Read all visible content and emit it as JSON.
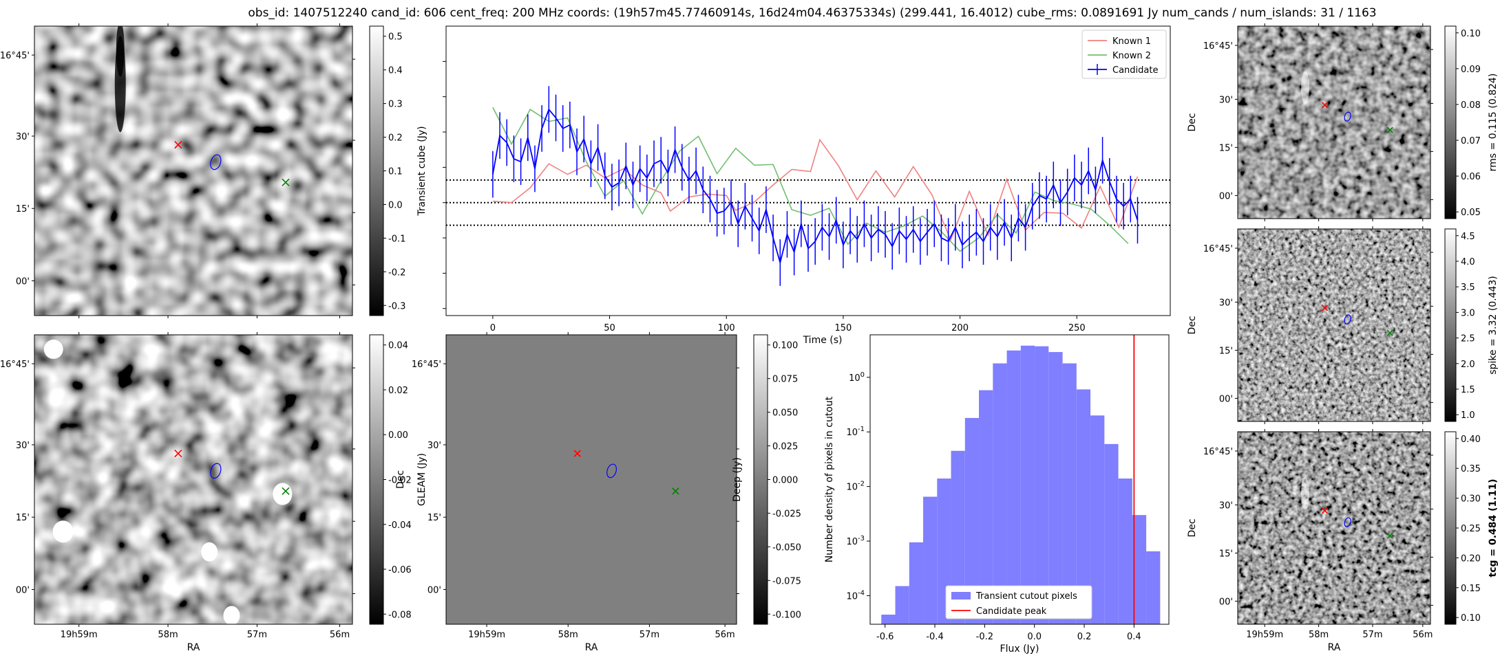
{
  "title": "obs_id: 1407512240 cand_id: 606 cent_freq: 200 MHz coords: (19h57m45.77460914s, 16d24m04.46375334s) (299.441, 16.4012) cube_rms: 0.0891691 Jy num_cands / num_islands: 31 / 1163",
  "colors": {
    "red": "#ff0000",
    "green": "#008000",
    "blue": "#0000ff",
    "known1": "#f08080",
    "known2": "#6fbf6f",
    "hist": "#7f7fff"
  },
  "sky_axes": {
    "dec_ticks": [
      "16°45'",
      "30'",
      "15'",
      "00'"
    ],
    "ra_ticks": [
      "19h59m",
      "58m",
      "57m",
      "56m"
    ],
    "ra_label": "RA",
    "dec_label": "Dec"
  },
  "panels": {
    "transient": {
      "colorbar_label": "Transient cube (Jy)",
      "colorbar_ticks": [
        "0.5",
        "0.4",
        "0.3",
        "0.2",
        "0.1",
        "0.0",
        "-0.1",
        "-0.2",
        "-0.3"
      ]
    },
    "gleam": {
      "colorbar_label": "GLEAM (Jy)",
      "colorbar_ticks": [
        "0.04",
        "0.02",
        "0.00",
        "-0.02",
        "-0.04",
        "-0.06",
        "-0.08"
      ]
    },
    "deep": {
      "colorbar_label": "Deep (Jy)",
      "colorbar_ticks": [
        "0.100",
        "0.075",
        "0.050",
        "0.025",
        "0.000",
        "-0.025",
        "-0.050",
        "-0.075",
        "-0.100"
      ]
    },
    "rms": {
      "colorbar_label": "rms = 0.115 (0.824)",
      "colorbar_ticks": [
        "0.10",
        "0.09",
        "0.08",
        "0.07",
        "0.06",
        "0.05"
      ]
    },
    "spike": {
      "colorbar_label": "spike = 3.32 (0.443)",
      "colorbar_ticks": [
        "4.5",
        "4.0",
        "3.5",
        "3.0",
        "2.5",
        "2.0",
        "1.5",
        "1.0"
      ]
    },
    "tcg": {
      "colorbar_label": "tcg = 0.484 (1.11)",
      "colorbar_ticks": [
        "0.40",
        "0.35",
        "0.30",
        "0.25",
        "0.20",
        "0.15",
        "0.10"
      ]
    }
  },
  "chart_data": [
    {
      "type": "line",
      "xlabel": "Time (s)",
      "ylabel": "",
      "xlim": [
        -20,
        290
      ],
      "ylim": [
        -1.6,
        2.5
      ],
      "x_ticks": [
        0,
        50,
        100,
        150,
        200,
        250
      ],
      "hlines": [
        0.32,
        0.0,
        -0.32
      ],
      "legend": [
        "Known 1",
        "Known 2",
        "Candidate"
      ],
      "legend_position": "top-right",
      "known1_x": [
        0,
        8,
        16,
        24,
        32,
        40,
        48,
        56,
        64,
        72,
        76,
        84,
        92,
        100,
        104,
        112,
        120,
        128,
        136,
        140,
        148,
        156,
        164,
        172,
        180,
        188,
        196,
        204,
        212,
        220,
        228,
        236,
        244,
        252,
        260,
        268,
        276
      ],
      "known1_y": [
        0.02,
        0.0,
        0.21,
        0.55,
        0.4,
        0.53,
        0.35,
        0.48,
        0.25,
        0.14,
        -0.12,
        0.08,
        0.12,
        0.1,
        -0.11,
        0.01,
        0.25,
        0.47,
        0.44,
        0.89,
        0.52,
        0.04,
        0.45,
        0.08,
        0.51,
        0.11,
        -0.53,
        0.16,
        -0.46,
        0.33,
        -0.39,
        -0.14,
        -0.15,
        -0.36,
        0.23,
        -0.35,
        0.37
      ],
      "known2_x": [
        0,
        8,
        16,
        24,
        32,
        40,
        48,
        56,
        64,
        72,
        80,
        88,
        96,
        104,
        112,
        120,
        128,
        136,
        144,
        152,
        160,
        168,
        176,
        184,
        192,
        200,
        208,
        216,
        224,
        232,
        240,
        248,
        256,
        264,
        272
      ],
      "known2_y": [
        1.35,
        0.83,
        1.32,
        1.15,
        1.2,
        0.58,
        0.09,
        0.31,
        -0.16,
        0.31,
        0.73,
        0.94,
        0.41,
        0.77,
        0.53,
        0.54,
        -0.1,
        -0.18,
        -0.08,
        -0.59,
        -0.29,
        -0.42,
        -0.33,
        -0.19,
        -0.41,
        -0.69,
        -0.5,
        -0.17,
        -0.43,
        0.15,
        0.03,
        -0.02,
        -0.09,
        -0.32,
        -0.58
      ],
      "candidate_x": [
        0,
        3,
        6,
        9,
        12,
        15,
        18,
        21,
        24,
        27,
        30,
        33,
        36,
        39,
        42,
        45,
        48,
        51,
        54,
        57,
        60,
        63,
        66,
        69,
        72,
        75,
        78,
        81,
        84,
        87,
        90,
        93,
        96,
        99,
        102,
        105,
        108,
        111,
        114,
        117,
        120,
        123,
        126,
        129,
        132,
        135,
        138,
        141,
        144,
        147,
        150,
        153,
        156,
        159,
        162,
        165,
        168,
        171,
        174,
        177,
        180,
        183,
        186,
        189,
        192,
        195,
        198,
        201,
        204,
        207,
        210,
        213,
        216,
        219,
        222,
        225,
        228,
        231,
        234,
        237,
        240,
        243,
        246,
        249,
        252,
        255,
        258,
        261,
        264,
        267,
        270,
        273,
        276
      ],
      "candidate_y": [
        0.4,
        0.95,
        0.85,
        0.62,
        0.58,
        0.92,
        0.48,
        1.05,
        1.32,
        1.2,
        1.05,
        1.1,
        0.72,
        0.9,
        0.55,
        0.78,
        0.38,
        0.22,
        0.28,
        0.52,
        0.25,
        0.48,
        0.35,
        0.55,
        0.6,
        0.42,
        0.75,
        0.5,
        0.32,
        0.45,
        0.18,
        0.05,
        -0.15,
        -0.12,
        0.0,
        -0.3,
        -0.05,
        -0.22,
        -0.4,
        -0.1,
        -0.5,
        -0.85,
        -0.45,
        -0.7,
        -0.3,
        -0.65,
        -0.55,
        -0.35,
        -0.48,
        -0.25,
        -0.6,
        -0.4,
        -0.52,
        -0.3,
        -0.5,
        -0.38,
        -0.45,
        -0.62,
        -0.4,
        -0.52,
        -0.38,
        -0.55,
        -0.42,
        -0.3,
        -0.5,
        -0.55,
        -0.35,
        -0.6,
        -0.5,
        -0.42,
        -0.55,
        -0.35,
        -0.48,
        -0.28,
        -0.5,
        -0.22,
        -0.35,
        -0.05,
        0.1,
        0.05,
        0.25,
        0.0,
        0.15,
        0.35,
        0.25,
        0.45,
        0.18,
        0.6,
        0.3,
        0.05,
        -0.05,
        0.05,
        -0.25
      ],
      "candidate_err": 0.33
    },
    {
      "type": "bar",
      "title": "",
      "xlabel": "Flux (Jy)",
      "ylabel": "Number density of pixels in cutout",
      "yscale": "log",
      "xlim": [
        -0.66,
        0.54
      ],
      "ylim": [
        3e-05,
        6
      ],
      "x_ticks": [
        "-0.6",
        "-0.4",
        "-0.2",
        "0.0",
        "0.2",
        "0.4"
      ],
      "y_ticks": [
        "10^0",
        "10^-1",
        "10^-2",
        "10^-3",
        "10^-4"
      ],
      "bin_edges": [
        -0.615,
        -0.559,
        -0.503,
        -0.447,
        -0.391,
        -0.335,
        -0.279,
        -0.223,
        -0.167,
        -0.111,
        -0.055,
        0.001,
        0.057,
        0.113,
        0.169,
        0.225,
        0.281,
        0.337,
        0.393,
        0.449,
        0.505
      ],
      "values": [
        4.5e-05,
        0.00015,
        0.00095,
        0.0065,
        0.014,
        0.045,
        0.18,
        0.58,
        1.8,
        3.1,
        3.8,
        3.7,
        2.9,
        1.8,
        0.6,
        0.2,
        0.06,
        0.014,
        0.003,
        0.00065
      ],
      "candidate_peak": 0.4,
      "legend": [
        "Transient cutout pixels",
        "Candidate peak"
      ],
      "legend_position": "lower-center"
    }
  ]
}
